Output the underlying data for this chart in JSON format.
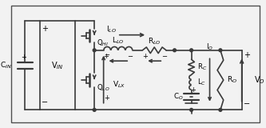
{
  "bg_color": "#f2f2f2",
  "line_color": "#3a3a3a",
  "border_color": "#555555",
  "text_color": "#000000",
  "lw": 1.2,
  "fig_width": 3.33,
  "fig_height": 1.6,
  "dpi": 100,
  "labels": {
    "C_IN": "C$_{IN}$",
    "V_IN": "V$_{IN}$",
    "Q_HI": "Q$_{HI}$",
    "Q_LO": "Q$_{LO}$",
    "L_LO": "L$_{LO}$",
    "I_LO": "I$_{LO}$",
    "R_LO": "R$_{LO}$",
    "V_LX": "V$_{LX}$",
    "R_C": "R$_{C}$",
    "L_C": "L$_{C}$",
    "C_O": "C$_{O}$",
    "I_O": "I$_{O}$",
    "R_O": "R$_{O}$",
    "V_O": "V$_{O}$"
  }
}
